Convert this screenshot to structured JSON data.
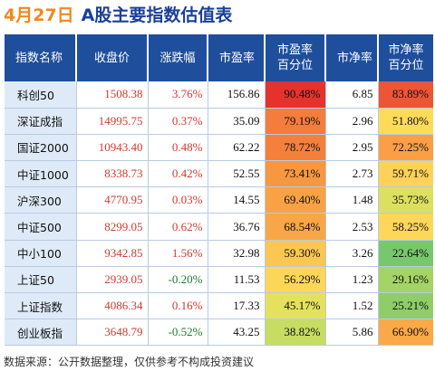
{
  "header": {
    "date": "4月27日",
    "title": "A股主要指数估值表"
  },
  "columns": [
    {
      "lines": [
        "指数名称"
      ]
    },
    {
      "lines": [
        "收盘价"
      ]
    },
    {
      "lines": [
        "涨跌幅"
      ]
    },
    {
      "lines": [
        "市盈率"
      ]
    },
    {
      "lines": [
        "市盈率",
        "百分位"
      ]
    },
    {
      "lines": [
        "市净率"
      ]
    },
    {
      "lines": [
        "市净率",
        "百分位"
      ]
    }
  ],
  "rows": [
    {
      "name": "科创50",
      "close": "1508.38",
      "change": "3.76%",
      "pe": "156.86",
      "pe_pct": "90.48%",
      "pb": "6.85",
      "pb_pct": "83.89%"
    },
    {
      "name": "深证成指",
      "close": "14995.75",
      "change": "0.37%",
      "pe": "35.09",
      "pe_pct": "79.19%",
      "pb": "2.96",
      "pb_pct": "51.80%"
    },
    {
      "name": "国证2000",
      "close": "10943.40",
      "change": "0.48%",
      "pe": "62.22",
      "pe_pct": "78.72%",
      "pb": "2.95",
      "pb_pct": "72.25%"
    },
    {
      "name": "中证1000",
      "close": "8338.73",
      "change": "0.42%",
      "pe": "52.55",
      "pe_pct": "73.41%",
      "pb": "2.73",
      "pb_pct": "59.71%"
    },
    {
      "name": "沪深300",
      "close": "4770.95",
      "change": "0.03%",
      "pe": "14.55",
      "pe_pct": "69.40%",
      "pb": "1.48",
      "pb_pct": "35.73%"
    },
    {
      "name": "中证500",
      "close": "8299.05",
      "change": "0.62%",
      "pe": "36.76",
      "pe_pct": "68.54%",
      "pb": "2.53",
      "pb_pct": "58.25%"
    },
    {
      "name": "中小100",
      "close": "9342.85",
      "change": "1.56%",
      "pe": "32.98",
      "pe_pct": "59.30%",
      "pb": "3.26",
      "pb_pct": "22.64%"
    },
    {
      "name": "上证50",
      "close": "2939.05",
      "change": "-0.20%",
      "pe": "11.53",
      "pe_pct": "56.29%",
      "pb": "1.23",
      "pb_pct": "29.16%"
    },
    {
      "name": "上证指数",
      "close": "4086.34",
      "change": "0.16%",
      "pe": "17.33",
      "pe_pct": "45.17%",
      "pb": "1.52",
      "pb_pct": "25.21%"
    },
    {
      "name": "创业板指",
      "close": "3648.79",
      "change": "-0.52%",
      "pe": "43.25",
      "pe_pct": "38.82%",
      "pb": "5.86",
      "pb_pct": "66.90%"
    }
  ],
  "colors": {
    "header_bg": "#1f4e9c",
    "name_bg": "#deeaf7",
    "up": "#d03a2f",
    "down": "#1e7a32",
    "pe_pct_bg": [
      "#e5322d",
      "#f47c3c",
      "#f5803c",
      "#f7973f",
      "#f8a244",
      "#f8a646",
      "#fbc750",
      "#fcd656",
      "#e4e25c",
      "#c6dc62"
    ],
    "pb_pct_bg": [
      "#ee5534",
      "#fedc59",
      "#fa9f45",
      "#fed158",
      "#dce05f",
      "#fed659",
      "#77c76c",
      "#a4d465",
      "#8fcd69",
      "#fba846"
    ]
  },
  "footer": "数据来源：公开数据整理，仅供参考不构成投资建议"
}
